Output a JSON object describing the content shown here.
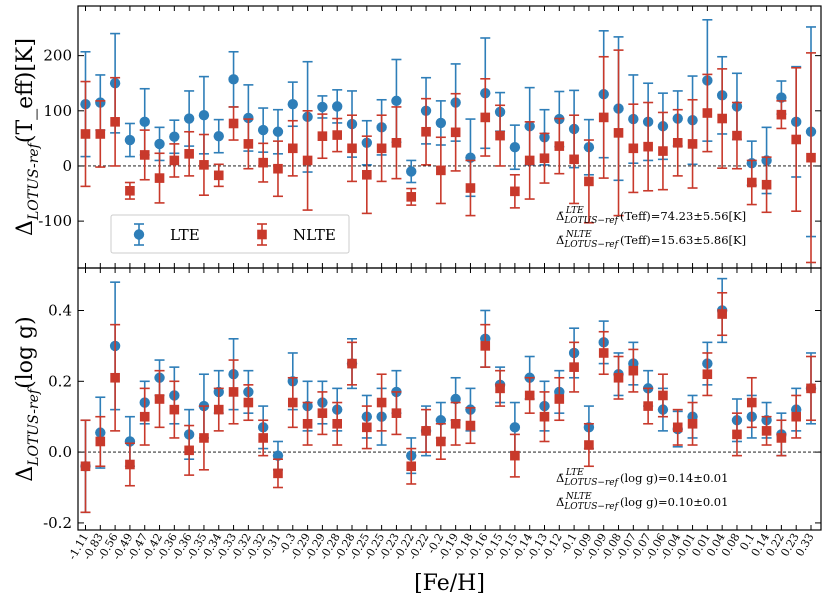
{
  "colors": {
    "lte": "#2e7eb8",
    "nlte": "#c8392b"
  },
  "xlabel": "[Fe/H]",
  "legend": {
    "lte": "LTE",
    "nlte": "NLTE"
  },
  "chart_data": [
    {
      "type": "scatter",
      "panel": "top",
      "ylabel": "Δ_{LOTUS-ref}(T_eff)[K]",
      "ylim": [
        -185,
        290
      ],
      "yticks": [
        "-100",
        "0",
        "100",
        "200"
      ],
      "ytick_values": [
        -100,
        0,
        100,
        200
      ],
      "stats": {
        "lte": "Δ̄ LTE LOTUS-ref (Teff)=74.23±5.56[K]",
        "nlte": "Δ̄ NLTE LOTUS-ref (Teff)=15.63±5.86[K]"
      },
      "series": [
        {
          "name": "LTE",
          "y": [
            112,
            115,
            150,
            47,
            80,
            40,
            53,
            86,
            92,
            54,
            157,
            87,
            65,
            62,
            112,
            89,
            107,
            108,
            76,
            42,
            70,
            118,
            -10,
            100,
            78,
            115,
            15,
            132,
            98,
            34,
            72,
            52,
            85,
            67,
            34,
            130,
            104,
            85,
            80,
            72,
            86,
            83,
            155,
            128,
            108,
            5,
            10,
            124,
            80,
            62
          ],
          "err": [
            95,
            50,
            90,
            30,
            60,
            30,
            30,
            50,
            70,
            30,
            50,
            60,
            40,
            40,
            40,
            100,
            20,
            30,
            60,
            40,
            50,
            75,
            20,
            60,
            40,
            70,
            70,
            100,
            35,
            40,
            70,
            50,
            50,
            70,
            50,
            115,
            130,
            80,
            70,
            60,
            50,
            80,
            110,
            70,
            60,
            40,
            60,
            30,
            100,
            190
          ]
        },
        {
          "name": "NLTE",
          "y": [
            58,
            58,
            80,
            -45,
            20,
            -22,
            10,
            22,
            2,
            -17,
            77,
            40,
            6,
            -5,
            32,
            10,
            54,
            56,
            32,
            -16,
            32,
            42,
            -56,
            62,
            -8,
            61,
            -40,
            88,
            55,
            -46,
            10,
            14,
            36,
            12,
            -28,
            88,
            60,
            32,
            35,
            27,
            42,
            40,
            96,
            86,
            55,
            -30,
            -34,
            93,
            48,
            15
          ],
          "err": [
            95,
            60,
            80,
            15,
            45,
            45,
            30,
            40,
            55,
            20,
            30,
            45,
            35,
            50,
            50,
            90,
            40,
            30,
            60,
            70,
            60,
            65,
            15,
            60,
            60,
            70,
            50,
            70,
            55,
            30,
            70,
            45,
            50,
            80,
            75,
            110,
            150,
            80,
            80,
            70,
            60,
            80,
            70,
            90,
            60,
            40,
            50,
            25,
            130,
            190
          ]
        }
      ]
    },
    {
      "type": "scatter",
      "panel": "bottom",
      "ylabel": "Δ_{LOTUS-ref}(log g)",
      "ylim": [
        -0.22,
        0.52
      ],
      "yticks": [
        "-0.2",
        "0.0",
        "0.2",
        "0.4"
      ],
      "ytick_values": [
        -0.2,
        0.0,
        0.2,
        0.4
      ],
      "stats": {
        "lte": "Δ̄ LTE LOTUS-ref (log g)=0.14±0.01",
        "nlte": "Δ̄ NLTE LOTUS-ref (log g)=0.10±0.01"
      },
      "series": [
        {
          "name": "LTE",
          "y": [
            -0.04,
            0.055,
            0.3,
            0.03,
            0.14,
            0.21,
            0.16,
            0.05,
            0.13,
            0.17,
            0.22,
            0.17,
            0.07,
            -0.01,
            0.2,
            0.13,
            0.14,
            0.12,
            0.25,
            0.1,
            0.1,
            0.17,
            -0.01,
            0.06,
            0.09,
            0.15,
            0.12,
            0.32,
            0.19,
            0.07,
            0.21,
            0.13,
            0.17,
            0.28,
            0.07,
            0.31,
            0.22,
            0.25,
            0.18,
            0.12,
            0.065,
            0.1,
            0.25,
            0.4,
            0.09,
            0.1,
            0.09,
            0.05,
            0.12,
            0.18
          ],
          "err": [
            0.13,
            0.1,
            0.18,
            0.07,
            0.06,
            0.05,
            0.08,
            0.07,
            0.09,
            0.06,
            0.1,
            0.06,
            0.06,
            0.04,
            0.08,
            0.07,
            0.06,
            0.06,
            0.07,
            0.06,
            0.08,
            0.06,
            0.05,
            0.07,
            0.05,
            0.06,
            0.06,
            0.08,
            0.05,
            0.07,
            0.06,
            0.07,
            0.06,
            0.07,
            0.06,
            0.06,
            0.06,
            0.06,
            0.05,
            0.06,
            0.05,
            0.06,
            0.06,
            0.09,
            0.06,
            0.06,
            0.05,
            0.06,
            0.06,
            0.1
          ]
        },
        {
          "name": "NLTE",
          "y": [
            -0.04,
            0.03,
            0.21,
            -0.035,
            0.1,
            0.15,
            0.12,
            0.005,
            0.04,
            0.12,
            0.17,
            0.14,
            0.04,
            -0.06,
            0.14,
            0.08,
            0.11,
            0.08,
            0.25,
            0.07,
            0.14,
            0.11,
            -0.04,
            0.06,
            0.03,
            0.08,
            0.075,
            0.3,
            0.18,
            -0.01,
            0.16,
            0.1,
            0.15,
            0.24,
            0.02,
            0.28,
            0.21,
            0.23,
            0.13,
            0.16,
            0.07,
            0.08,
            0.22,
            0.39,
            0.05,
            0.14,
            0.06,
            0.04,
            0.1,
            0.18
          ],
          "err": [
            0.13,
            0.07,
            0.15,
            0.06,
            0.08,
            0.08,
            0.08,
            0.07,
            0.09,
            0.06,
            0.09,
            0.05,
            0.05,
            0.04,
            0.07,
            0.06,
            0.06,
            0.06,
            0.06,
            0.06,
            0.08,
            0.06,
            0.05,
            0.06,
            0.05,
            0.06,
            0.05,
            0.06,
            0.05,
            0.06,
            0.05,
            0.07,
            0.06,
            0.07,
            0.06,
            0.06,
            0.06,
            0.06,
            0.05,
            0.06,
            0.05,
            0.06,
            0.06,
            0.06,
            0.06,
            0.07,
            0.04,
            0.05,
            0.06,
            0.09
          ]
        }
      ]
    }
  ],
  "x_categories": [
    "-1.11",
    "-0.83",
    "-0.56",
    "-0.49",
    "-0.47",
    "-0.42",
    "-0.36",
    "-0.36",
    "-0.35",
    "-0.34",
    "-0.33",
    "-0.32",
    "-0.32",
    "-0.31",
    "-0.3",
    "-0.29",
    "-0.29",
    "-0.28",
    "-0.28",
    "-0.25",
    "-0.25",
    "-0.23",
    "-0.22",
    "-0.22",
    "-0.2",
    "-0.19",
    "-0.18",
    "-0.16",
    "-0.15",
    "-0.15",
    "-0.14",
    "-0.13",
    "-0.12",
    "-0.1",
    "-0.09",
    "-0.09",
    "-0.08",
    "-0.07",
    "-0.07",
    "-0.06",
    "-0.04",
    "-0.01",
    "0.01",
    "0.04",
    "0.08",
    "0.1",
    "0.14",
    "0.22",
    "0.23",
    "0.33"
  ]
}
